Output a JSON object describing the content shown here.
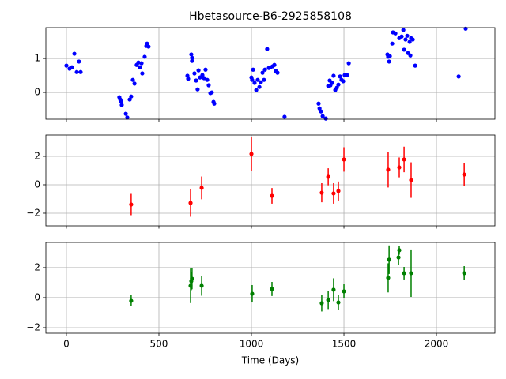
{
  "chart_data": [
    {
      "type": "scatter",
      "title": "Hbetasource-B6-2925858108",
      "color": "#0000ff",
      "grid": true,
      "xlim": [
        -111,
        2316
      ],
      "ylim": [
        -0.79,
        1.91
      ],
      "yticks": [
        0,
        1
      ],
      "x": [
        0,
        17,
        30,
        43,
        56,
        68,
        77,
        286,
        291,
        295,
        299,
        321,
        329,
        342,
        350,
        359,
        368,
        380,
        389,
        397,
        406,
        410,
        423,
        432,
        436,
        444,
        654,
        658,
        675,
        679,
        679,
        692,
        701,
        709,
        714,
        722,
        735,
        744,
        752,
        761,
        769,
        778,
        786,
        795,
        799,
        1000,
        1004,
        1009,
        1017,
        1026,
        1034,
        1043,
        1051,
        1060,
        1068,
        1073,
        1085,
        1094,
        1103,
        1115,
        1124,
        1132,
        1141,
        1179,
        1363,
        1368,
        1376,
        1385,
        1402,
        1415,
        1423,
        1427,
        1436,
        1444,
        1453,
        1462,
        1470,
        1479,
        1487,
        1496,
        1504,
        1517,
        1526,
        1735,
        1739,
        1744,
        1748,
        1761,
        1765,
        1778,
        1799,
        1812,
        1821,
        1825,
        1833,
        1842,
        1846,
        1855,
        1859,
        1863,
        1872,
        1885,
        2120,
        2158
      ],
      "values": [
        0.79,
        0.7,
        0.74,
        1.14,
        0.6,
        0.91,
        0.6,
        -0.14,
        -0.21,
        -0.26,
        -0.37,
        -0.63,
        -0.74,
        -0.21,
        -0.12,
        0.37,
        0.26,
        0.81,
        0.88,
        0.74,
        0.86,
        0.56,
        1.05,
        1.37,
        1.44,
        1.35,
        0.49,
        0.4,
        1.12,
        1.02,
        0.93,
        0.56,
        0.35,
        0.09,
        0.65,
        0.44,
        0.51,
        0.42,
        0.67,
        0.37,
        0.21,
        -0.02,
        0,
        -0.28,
        -0.33,
        0.44,
        0.37,
        0.67,
        0.28,
        0.07,
        0.37,
        0.16,
        0.3,
        0.58,
        0.37,
        0.67,
        1.28,
        0.72,
        0.74,
        0.77,
        0.81,
        0.63,
        0.58,
        -0.72,
        -0.33,
        -0.47,
        -0.56,
        -0.7,
        -0.77,
        0.19,
        0.35,
        0.21,
        0.28,
        0.49,
        0.07,
        0.14,
        0.23,
        0.47,
        0.37,
        0.33,
        0.51,
        0.51,
        0.86,
        1.12,
        1.05,
        0.91,
        1.07,
        1.44,
        1.77,
        1.74,
        1.6,
        1.65,
        1.84,
        1.26,
        1.56,
        1.67,
        1.16,
        1.49,
        1.09,
        1.6,
        1.56,
        0.79,
        0.47,
        1.88
      ]
    },
    {
      "type": "scatter",
      "color": "#ff0000",
      "grid": true,
      "xlim": [
        -111,
        2316
      ],
      "ylim": [
        -2.89,
        3.5
      ],
      "yticks": [
        {
          "value": -2,
          "label": "−2"
        },
        0,
        2
      ],
      "x": [
        350,
        671,
        731,
        1000,
        1111,
        1380,
        1415,
        1444,
        1470,
        1500,
        1739,
        1799,
        1825,
        1863,
        2150
      ],
      "values": [
        -1.39,
        -1.28,
        -0.22,
        2.17,
        -0.78,
        -0.56,
        0.56,
        -0.61,
        -0.44,
        1.78,
        1.06,
        1.22,
        1.78,
        0.33,
        0.72
      ],
      "errors": [
        0.75,
        0.97,
        0.8,
        1.2,
        0.55,
        0.67,
        0.6,
        0.72,
        0.67,
        0.86,
        1.25,
        0.7,
        0.9,
        1.25,
        0.83
      ]
    },
    {
      "type": "scatter",
      "color": "#008000",
      "grid": true,
      "xlabel": "Time (Days)",
      "xlim": [
        -111,
        2316
      ],
      "ylim": [
        -2.37,
        3.68
      ],
      "xticks": [
        0,
        500,
        1000,
        1500,
        2000
      ],
      "yticks": [
        {
          "value": -2,
          "label": "−2"
        },
        0,
        2
      ],
      "x": [
        350,
        671,
        675,
        679,
        731,
        1004,
        1111,
        1380,
        1415,
        1444,
        1470,
        1500,
        1739,
        1744,
        1795,
        1799,
        1825,
        1863,
        2150
      ],
      "values": [
        -0.21,
        0.79,
        1.1,
        1.26,
        0.79,
        0.26,
        0.58,
        -0.37,
        -0.16,
        0.53,
        -0.32,
        0.42,
        1.32,
        2.53,
        2.68,
        3.16,
        1.63,
        1.63,
        1.63
      ],
      "errors": [
        0.37,
        1.15,
        0.6,
        0.7,
        0.66,
        0.58,
        0.47,
        0.55,
        0.6,
        0.76,
        0.5,
        0.47,
        0.97,
        0.95,
        0.5,
        0.3,
        0.42,
        1.58,
        0.47
      ]
    }
  ]
}
